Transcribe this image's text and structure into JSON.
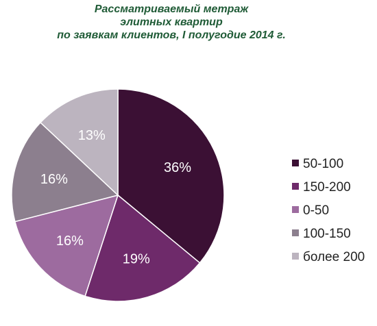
{
  "chart_data": {
    "type": "pie",
    "title_lines": [
      "Рассматриваемый метраж",
      "элитных квартир",
      "по заявкам клиентов, I полугодие  2014 г."
    ],
    "slices": [
      {
        "label": "50-100",
        "value": 36,
        "value_label": "36%",
        "color": "#3b1034"
      },
      {
        "label": "150-200",
        "value": 19,
        "value_label": "19%",
        "color": "#6e2a6a"
      },
      {
        "label": "0-50",
        "value": 16,
        "value_label": "16%",
        "color": "#9d6b9f"
      },
      {
        "label": "100-150",
        "value": 16,
        "value_label": "16%",
        "color": "#8c7f8e"
      },
      {
        "label": "более 200",
        "value": 13,
        "value_label": "13%",
        "color": "#bcb4bf"
      }
    ],
    "start_angle_deg": 0,
    "direction": "clockwise",
    "legend_position": "right",
    "label_color": "#ffffff",
    "title_color": "#1f5b36"
  }
}
